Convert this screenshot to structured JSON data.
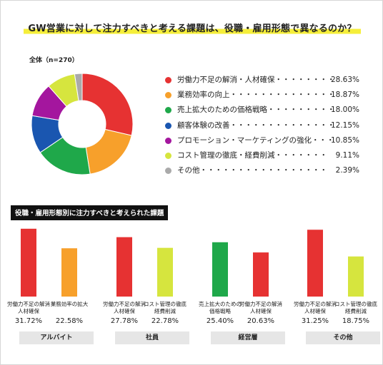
{
  "title": "GW営業に対して注力すべきと考える課題は、役職・雇用形態で異なるのか？",
  "colors": {
    "highlight": "#f5ee3a",
    "dark": "#111111",
    "group_bg": "#e6e6e6"
  },
  "chart_data": [
    {
      "type": "pie",
      "label": "全体（n=270）",
      "slices": [
        {
          "name": "労働力不足の解消・人材確保",
          "leader": "・・・・・・・・",
          "value": 28.63,
          "value_text": "28.63%",
          "color": "#e63232"
        },
        {
          "name": "業務効率の向上",
          "leader": "・・・・・・・・・・・・・・",
          "value": 18.87,
          "value_text": "18.87%",
          "color": "#f7a02b"
        },
        {
          "name": "売上拡大のための価格戦略",
          "leader": "・・・・・・・・・",
          "value": 18.0,
          "value_text": "18.00%",
          "color": "#1fa84a"
        },
        {
          "name": "顧客体験の改善",
          "leader": "・・・・・・・・・・・・・・",
          "value": 12.15,
          "value_text": "12.15%",
          "color": "#1a56b0"
        },
        {
          "name": "プロモーション・マーケティングの強化",
          "leader": "・・・",
          "value": 10.85,
          "value_text": "10.85%",
          "color": "#a4169e"
        },
        {
          "name": "コスト管理の徹底・経費削減",
          "leader": "・・・・・・・",
          "value": 9.11,
          "value_text": "9.11%",
          "color": "#d6e53e"
        },
        {
          "name": "その他",
          "leader": "・・・・・・・・・・・・・・・・・",
          "value": 2.39,
          "value_text": "2.39%",
          "color": "#aaaaaa"
        }
      ]
    },
    {
      "type": "bar",
      "title": "役職・雇用形態別に注力すべきと考えられた課題",
      "groups": [
        {
          "name": "アルバイト",
          "bars": [
            {
              "label": "労働力不足の解消\n人材確保",
              "value": 31.72,
              "value_text": "31.72%",
              "color": "#e63232"
            },
            {
              "label": "業務効率の拡大",
              "value": 22.58,
              "value_text": "22.58%",
              "color": "#f7a02b"
            }
          ]
        },
        {
          "name": "社員",
          "bars": [
            {
              "label": "労働力不足の解消\n人材確保",
              "value": 27.78,
              "value_text": "27.78%",
              "color": "#e63232"
            },
            {
              "label": "コスト管理の徹底\n経費削減",
              "value": 22.78,
              "value_text": "22.78%",
              "color": "#d6e53e"
            }
          ]
        },
        {
          "name": "経営層",
          "bars": [
            {
              "label": "売上拡大のための\n価格戦略",
              "value": 25.4,
              "value_text": "25.40%",
              "color": "#1fa84a"
            },
            {
              "label": "労働力不足の解消\n人材確保",
              "value": 20.63,
              "value_text": "20.63%",
              "color": "#e63232"
            }
          ]
        },
        {
          "name": "その他",
          "bars": [
            {
              "label": "労働力不足の解消\n人材確保",
              "value": 31.25,
              "value_text": "31.25%",
              "color": "#e63232"
            },
            {
              "label": "コスト管理の徹底\n経費削減",
              "value": 18.75,
              "value_text": "18.75%",
              "color": "#d6e53e"
            }
          ]
        }
      ]
    }
  ]
}
